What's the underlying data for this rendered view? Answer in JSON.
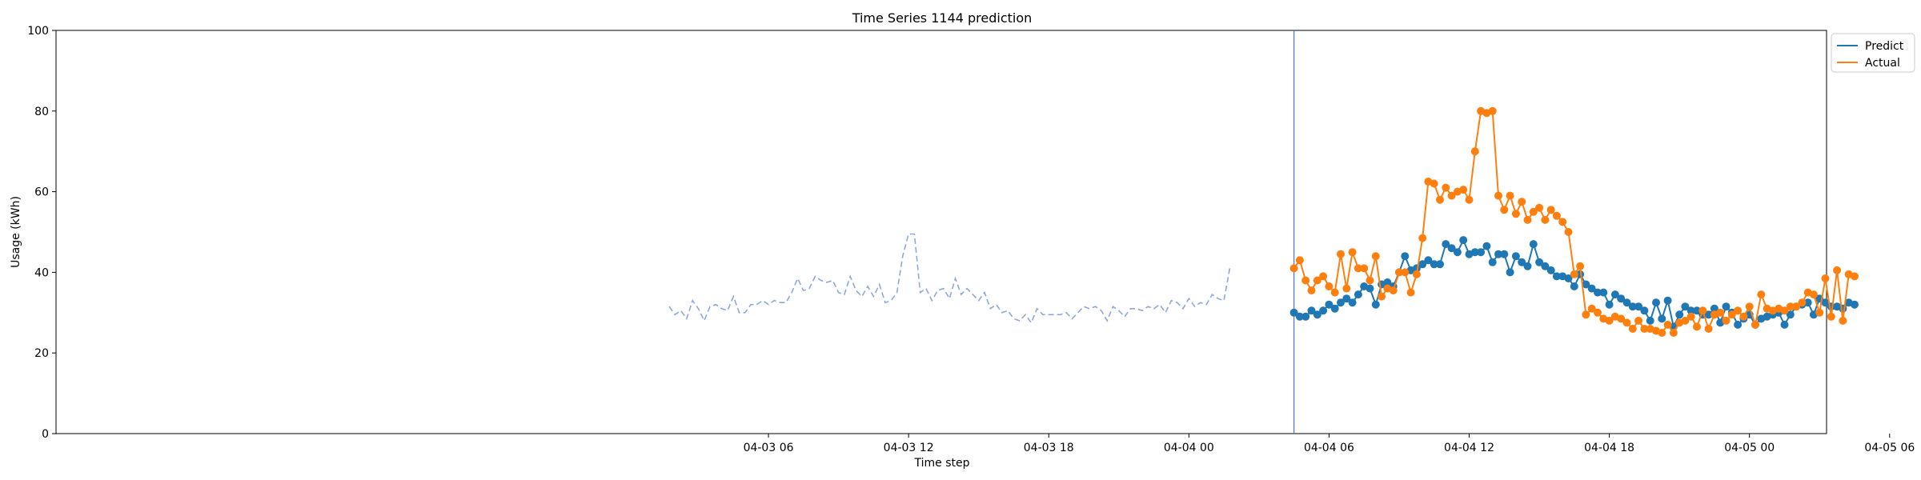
{
  "chart_data": {
    "type": "line",
    "title": "Time Series 1144 prediction",
    "xlabel": "Time step",
    "ylabel": "Usage (kWh)",
    "xlim_hours": [
      -24.5,
      51.3
    ],
    "ylim": [
      0,
      100
    ],
    "x_ticks": [
      {
        "hour": 6,
        "label": "04-03 06"
      },
      {
        "hour": 12,
        "label": "04-03 12"
      },
      {
        "hour": 18,
        "label": "04-03 18"
      },
      {
        "hour": 24,
        "label": "04-04 00"
      },
      {
        "hour": 30,
        "label": "04-04 06"
      },
      {
        "hour": 36,
        "label": "04-04 12"
      },
      {
        "hour": 42,
        "label": "04-04 18"
      },
      {
        "hour": 48,
        "label": "04-05 00"
      },
      {
        "hour": 54,
        "label": "04-05 06"
      }
    ],
    "y_ticks": [
      0,
      20,
      40,
      60,
      80,
      100
    ],
    "forecast_start_hour": 28.5,
    "step_hours": 0.25,
    "history": {
      "start_hour": 1.75,
      "color": "#8fa8d8",
      "values": [
        31.5,
        29.5,
        30.5,
        28.5,
        33.0,
        31.0,
        28.0,
        31.5,
        32.0,
        31.0,
        30.5,
        34.0,
        30.0,
        30.0,
        32.0,
        32.0,
        33.0,
        32.0,
        33.0,
        32.5,
        32.5,
        35.0,
        38.5,
        35.5,
        36.0,
        39.0,
        38.0,
        37.5,
        38.0,
        35.0,
        34.5,
        39.0,
        35.5,
        34.0,
        36.5,
        34.0,
        37.0,
        32.5,
        33.0,
        35.0,
        44.0,
        49.5,
        49.5,
        35.0,
        36.0,
        33.0,
        35.5,
        36.0,
        33.5,
        38.5,
        34.5,
        36.0,
        34.5,
        33.0,
        35.0,
        31.0,
        32.0,
        30.0,
        30.5,
        28.5,
        28.0,
        29.5,
        27.5,
        31.0,
        29.5,
        29.5,
        29.5,
        29.5,
        30.0,
        28.5,
        30.0,
        31.5,
        31.0,
        31.5,
        30.5,
        28.0,
        31.5,
        30.5,
        29.0,
        31.0,
        31.0,
        30.5,
        31.5,
        31.0,
        32.0,
        30.0,
        33.0,
        32.5,
        31.0,
        33.5,
        31.5,
        32.5,
        32.0,
        34.5,
        33.5,
        33.0,
        41.0
      ]
    },
    "series": [
      {
        "name": "Predict",
        "color": "#1f77b4",
        "start_hour": 28.5,
        "values": [
          30.0,
          29.0,
          29.0,
          30.5,
          29.5,
          30.5,
          32.0,
          31.0,
          32.5,
          33.5,
          32.5,
          34.5,
          36.5,
          36.0,
          32.0,
          37.0,
          37.5,
          36.5,
          40.0,
          44.0,
          40.5,
          41.0,
          42.0,
          43.0,
          42.0,
          42.0,
          47.0,
          46.0,
          45.0,
          48.0,
          44.5,
          45.0,
          45.0,
          46.5,
          42.5,
          44.5,
          44.5,
          40.0,
          44.0,
          42.5,
          41.5,
          47.0,
          42.5,
          41.5,
          40.5,
          39.0,
          39.0,
          38.5,
          36.5,
          39.5,
          37.0,
          36.0,
          35.0,
          35.0,
          32.0,
          34.5,
          33.5,
          32.5,
          31.5,
          31.5,
          30.5,
          28.0,
          32.5,
          28.5,
          33.0,
          26.5,
          29.5,
          31.5,
          30.5,
          30.5,
          29.5,
          29.5,
          31.0,
          27.5,
          31.5,
          30.0,
          27.0,
          28.5,
          29.5,
          27.0,
          28.5,
          29.0,
          29.5,
          30.0,
          27.0,
          29.5,
          31.5,
          32.0,
          32.5,
          29.5,
          33.5,
          32.5,
          31.5,
          31.5,
          31.0,
          32.5,
          32.0
        ]
      },
      {
        "name": "Actual",
        "color": "#ff7f0e",
        "start_hour": 28.5,
        "values": [
          41.0,
          43.0,
          38.0,
          35.5,
          38.0,
          39.0,
          36.5,
          35.0,
          44.5,
          36.0,
          45.0,
          41.0,
          41.0,
          38.0,
          44.0,
          34.0,
          36.0,
          35.5,
          40.0,
          40.0,
          35.0,
          39.5,
          48.5,
          62.5,
          62.0,
          58.0,
          61.0,
          59.0,
          60.0,
          60.5,
          58.0,
          70.0,
          80.0,
          79.5,
          80.0,
          59.0,
          55.5,
          59.0,
          54.5,
          57.5,
          53.0,
          55.0,
          56.0,
          53.0,
          55.5,
          54.0,
          52.5,
          50.0,
          39.5,
          41.5,
          29.5,
          31.0,
          30.0,
          28.5,
          28.0,
          29.0,
          28.5,
          27.5,
          26.0,
          28.0,
          26.0,
          26.0,
          25.5,
          25.0,
          27.0,
          25.0,
          27.5,
          28.0,
          29.0,
          26.5,
          30.5,
          26.0,
          29.5,
          30.0,
          28.0,
          29.5,
          30.5,
          29.0,
          31.5,
          27.0,
          34.5,
          31.0,
          30.5,
          31.0,
          30.5,
          31.5,
          31.5,
          32.5,
          35.0,
          34.5,
          30.0,
          38.5,
          29.0,
          40.5,
          28.0,
          39.5,
          39.0
        ]
      }
    ],
    "legend": {
      "location": "outside-top-right",
      "entries": [
        "Predict",
        "Actual"
      ]
    }
  }
}
